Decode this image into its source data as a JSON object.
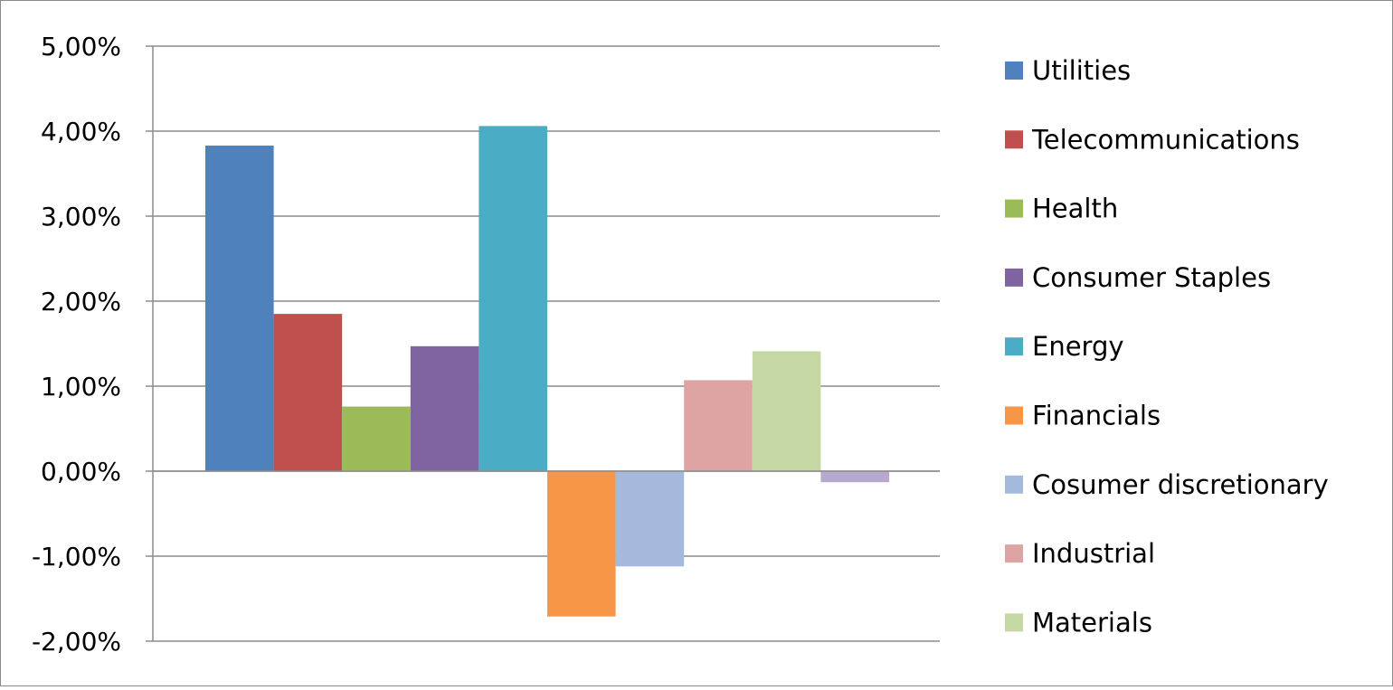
{
  "chart_data": {
    "type": "bar",
    "title": "",
    "xlabel": "",
    "ylabel": "",
    "ylim": [
      -2,
      5
    ],
    "yticks": [
      5,
      4,
      3,
      2,
      1,
      0,
      -1,
      -2
    ],
    "ytick_labels": [
      "5,00%",
      "4,00%",
      "3,00%",
      "2,00%",
      "1,00%",
      "0,00%",
      "-1,00%",
      "-2,00%"
    ],
    "grid": true,
    "legend_position": "right",
    "series": [
      {
        "name": "Utilities",
        "value": 3.83,
        "color": "#4f81bd"
      },
      {
        "name": "Telecommunications",
        "value": 1.85,
        "color": "#c0504d"
      },
      {
        "name": "Health",
        "value": 0.76,
        "color": "#9bbb59"
      },
      {
        "name": "Consumer Staples",
        "value": 1.47,
        "color": "#8064a2"
      },
      {
        "name": "Energy",
        "value": 4.06,
        "color": "#4bacc6"
      },
      {
        "name": "Financials",
        "value": -1.71,
        "color": "#f79646"
      },
      {
        "name": "Cosumer discretionary",
        "value": -1.12,
        "color": "#a5b9dc"
      },
      {
        "name": "Industrial",
        "value": 1.07,
        "color": "#dda4a3"
      },
      {
        "name": "Materials",
        "value": 1.41,
        "color": "#c5d7a3"
      },
      {
        "name": "",
        "value": -0.13,
        "color": "#b7a8cd"
      }
    ]
  }
}
